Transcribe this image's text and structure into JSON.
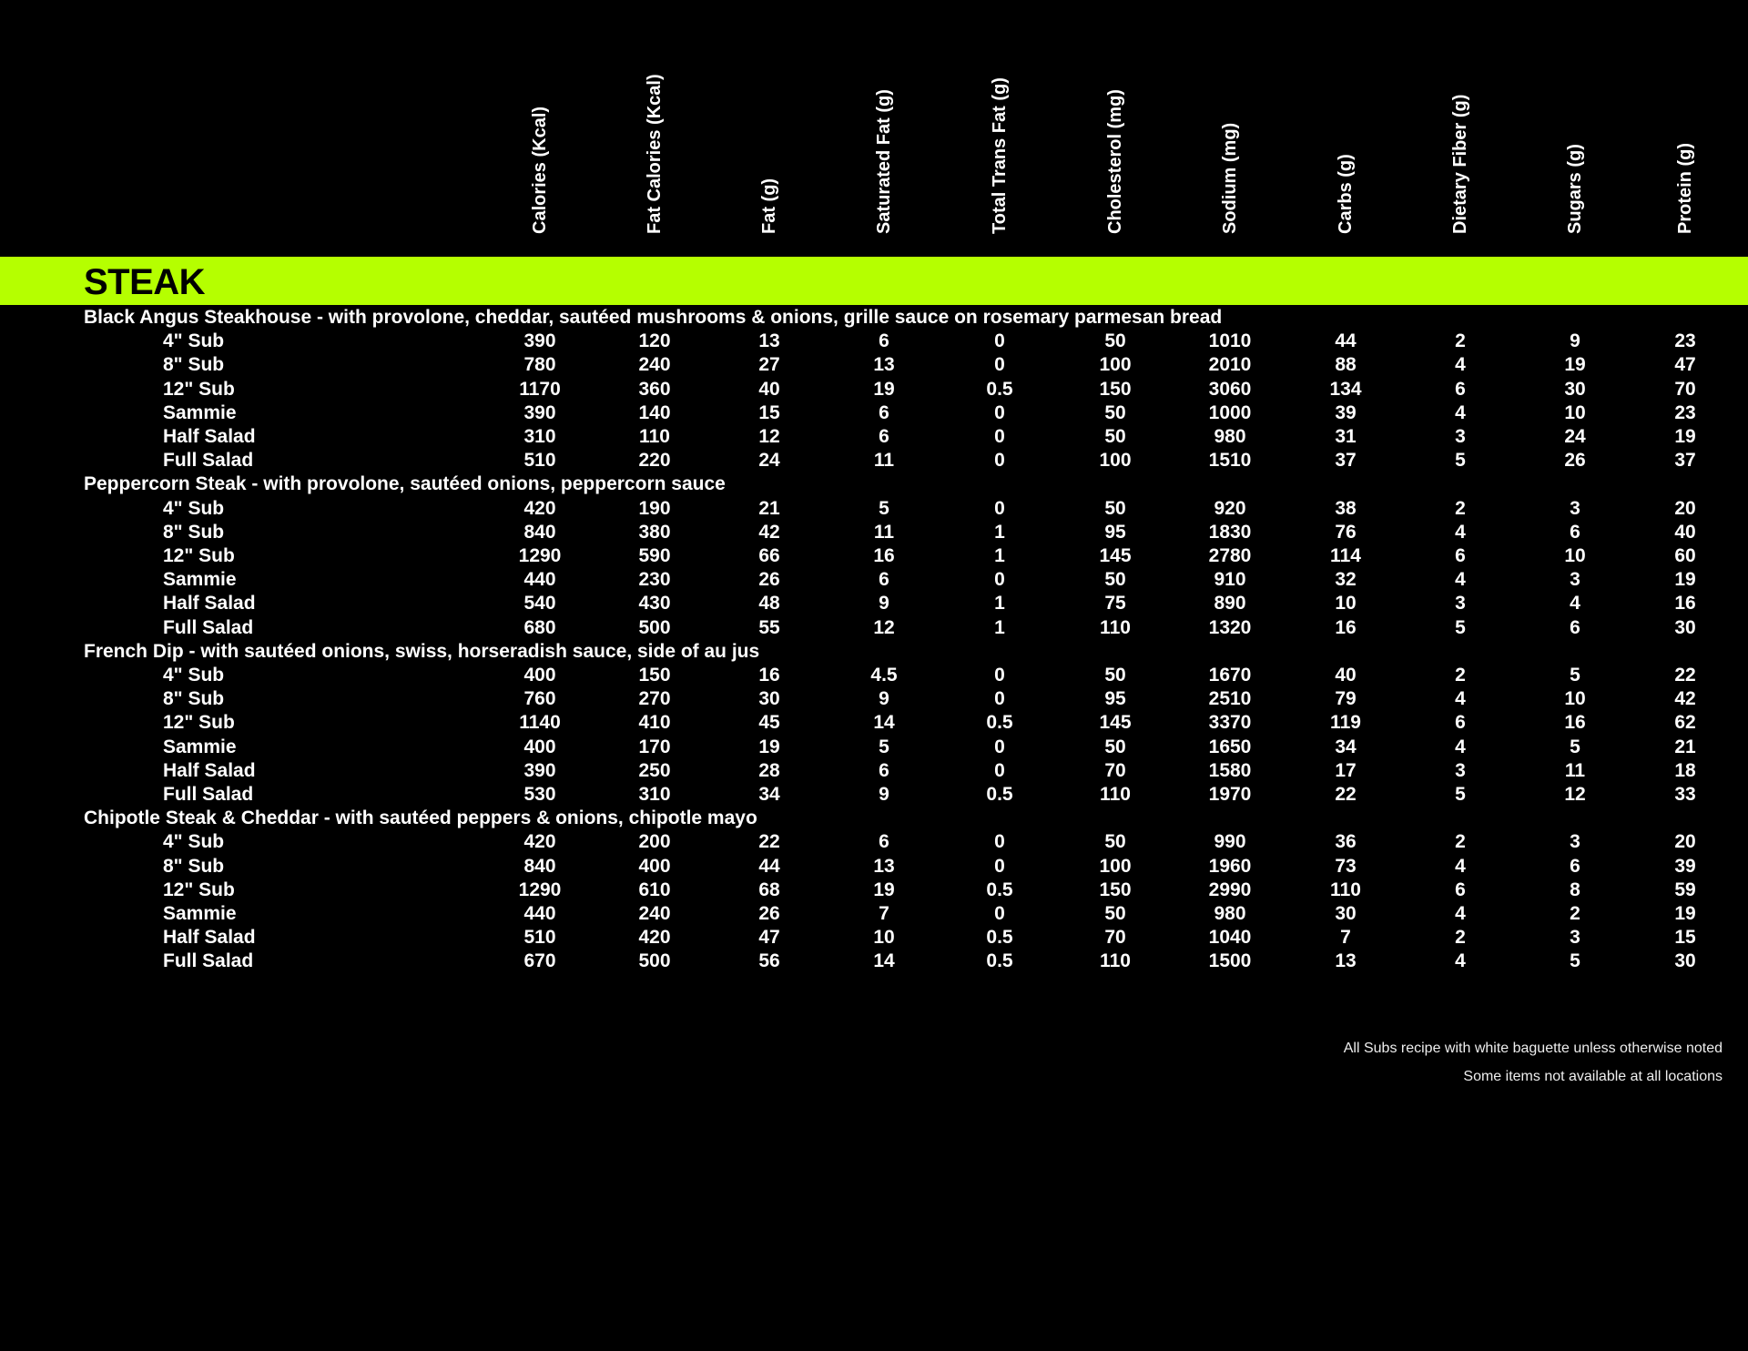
{
  "columns": [
    "Calories (Kcal)",
    "Fat Calories (Kcal)",
    "Fat (g)",
    "Saturated Fat (g)",
    "Total Trans Fat (g)",
    "Cholesterol (mg)",
    "Sodium (mg)",
    "Carbs (g)",
    "Dietary Fiber (g)",
    "Sugars (g)",
    "Protein (g)"
  ],
  "section_title": "STEAK",
  "section_color": "#b5ff00",
  "groups": [
    {
      "title": "Black Angus Steakhouse - with provolone, cheddar, sautéed mushrooms & onions, grille sauce on rosemary parmesan bread",
      "items": [
        {
          "name": "4\" Sub",
          "values": [
            "390",
            "120",
            "13",
            "6",
            "0",
            "50",
            "1010",
            "44",
            "2",
            "9",
            "23"
          ]
        },
        {
          "name": "8\" Sub",
          "values": [
            "780",
            "240",
            "27",
            "13",
            "0",
            "100",
            "2010",
            "88",
            "4",
            "19",
            "47"
          ]
        },
        {
          "name": "12\" Sub",
          "values": [
            "1170",
            "360",
            "40",
            "19",
            "0.5",
            "150",
            "3060",
            "134",
            "6",
            "30",
            "70"
          ]
        },
        {
          "name": "Sammie",
          "values": [
            "390",
            "140",
            "15",
            "6",
            "0",
            "50",
            "1000",
            "39",
            "4",
            "10",
            "23"
          ]
        },
        {
          "name": "Half Salad",
          "values": [
            "310",
            "110",
            "12",
            "6",
            "0",
            "50",
            "980",
            "31",
            "3",
            "24",
            "19"
          ]
        },
        {
          "name": "Full Salad",
          "values": [
            "510",
            "220",
            "24",
            "11",
            "0",
            "100",
            "1510",
            "37",
            "5",
            "26",
            "37"
          ]
        }
      ]
    },
    {
      "title": "Peppercorn Steak - with provolone, sautéed onions, peppercorn sauce",
      "items": [
        {
          "name": "4\" Sub",
          "values": [
            "420",
            "190",
            "21",
            "5",
            "0",
            "50",
            "920",
            "38",
            "2",
            "3",
            "20"
          ]
        },
        {
          "name": "8\" Sub",
          "values": [
            "840",
            "380",
            "42",
            "11",
            "1",
            "95",
            "1830",
            "76",
            "4",
            "6",
            "40"
          ]
        },
        {
          "name": "12\" Sub",
          "values": [
            "1290",
            "590",
            "66",
            "16",
            "1",
            "145",
            "2780",
            "114",
            "6",
            "10",
            "60"
          ]
        },
        {
          "name": "Sammie",
          "values": [
            "440",
            "230",
            "26",
            "6",
            "0",
            "50",
            "910",
            "32",
            "4",
            "3",
            "19"
          ]
        },
        {
          "name": "Half Salad",
          "values": [
            "540",
            "430",
            "48",
            "9",
            "1",
            "75",
            "890",
            "10",
            "3",
            "4",
            "16"
          ]
        },
        {
          "name": "Full Salad",
          "values": [
            "680",
            "500",
            "55",
            "12",
            "1",
            "110",
            "1320",
            "16",
            "5",
            "6",
            "30"
          ]
        }
      ]
    },
    {
      "title": "French Dip - with sautéed onions, swiss, horseradish sauce, side of au jus",
      "items": [
        {
          "name": "4\" Sub",
          "values": [
            "400",
            "150",
            "16",
            "4.5",
            "0",
            "50",
            "1670",
            "40",
            "2",
            "5",
            "22"
          ]
        },
        {
          "name": "8\" Sub",
          "values": [
            "760",
            "270",
            "30",
            "9",
            "0",
            "95",
            "2510",
            "79",
            "4",
            "10",
            "42"
          ]
        },
        {
          "name": "12\" Sub",
          "values": [
            "1140",
            "410",
            "45",
            "14",
            "0.5",
            "145",
            "3370",
            "119",
            "6",
            "16",
            "62"
          ]
        },
        {
          "name": "Sammie",
          "values": [
            "400",
            "170",
            "19",
            "5",
            "0",
            "50",
            "1650",
            "34",
            "4",
            "5",
            "21"
          ]
        },
        {
          "name": "Half Salad",
          "values": [
            "390",
            "250",
            "28",
            "6",
            "0",
            "70",
            "1580",
            "17",
            "3",
            "11",
            "18"
          ]
        },
        {
          "name": "Full Salad",
          "values": [
            "530",
            "310",
            "34",
            "9",
            "0.5",
            "110",
            "1970",
            "22",
            "5",
            "12",
            "33"
          ]
        }
      ]
    },
    {
      "title": "Chipotle Steak & Cheddar - with sautéed peppers & onions, chipotle mayo",
      "items": [
        {
          "name": "4\" Sub",
          "values": [
            "420",
            "200",
            "22",
            "6",
            "0",
            "50",
            "990",
            "36",
            "2",
            "3",
            "20"
          ]
        },
        {
          "name": "8\" Sub",
          "values": [
            "840",
            "400",
            "44",
            "13",
            "0",
            "100",
            "1960",
            "73",
            "4",
            "6",
            "39"
          ]
        },
        {
          "name": "12\" Sub",
          "values": [
            "1290",
            "610",
            "68",
            "19",
            "0.5",
            "150",
            "2990",
            "110",
            "6",
            "8",
            "59"
          ]
        },
        {
          "name": "Sammie",
          "values": [
            "440",
            "240",
            "26",
            "7",
            "0",
            "50",
            "980",
            "30",
            "4",
            "2",
            "19"
          ]
        },
        {
          "name": "Half Salad",
          "values": [
            "510",
            "420",
            "47",
            "10",
            "0.5",
            "70",
            "1040",
            "7",
            "2",
            "3",
            "15"
          ]
        },
        {
          "name": "Full Salad",
          "values": [
            "670",
            "500",
            "56",
            "14",
            "0.5",
            "110",
            "1500",
            "13",
            "4",
            "5",
            "30"
          ]
        }
      ]
    }
  ],
  "notes": [
    "All Subs recipe with white baguette unless otherwise noted",
    "Some items not available at all locations"
  ]
}
